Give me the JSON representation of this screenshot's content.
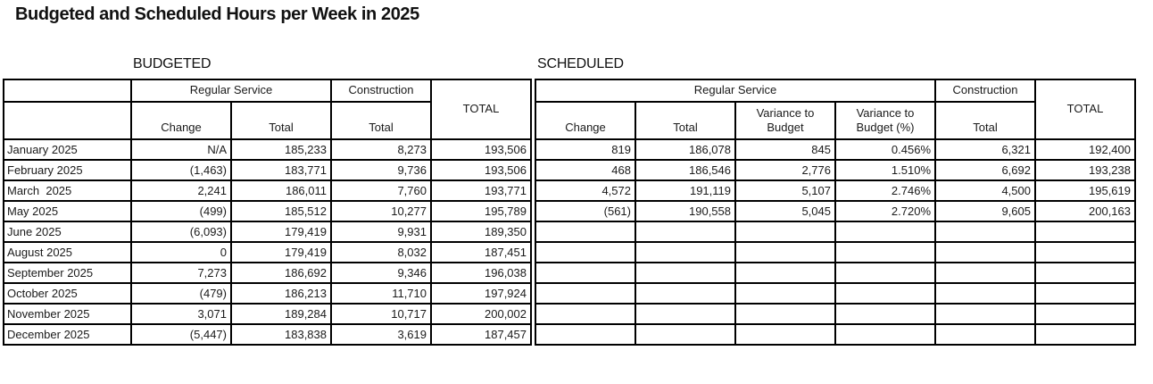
{
  "title": "Budgeted and Scheduled Hours per Week in 2025",
  "sections": {
    "budgeted": "BUDGETED",
    "scheduled": "SCHEDULED"
  },
  "headers": {
    "regular_service": "Regular Service",
    "construction": "Construction",
    "change": "Change",
    "total": "Total",
    "variance_to_budget": "Variance to Budget",
    "variance_to_budget_pct": "Variance to Budget (%)",
    "grand_total": "TOTAL"
  },
  "colors": {
    "value_blue": "#2d2dc8",
    "border_black": "#000000"
  },
  "rows": [
    {
      "month": "January 2025",
      "b_change": "N/A",
      "b_total": "185,233",
      "b_constr": "8,273",
      "b_grand": "193,506",
      "s_change": "819",
      "s_total": "186,078",
      "s_var": "845",
      "s_var_pct": "0.456%",
      "s_constr": "6,321",
      "s_grand": "192,400"
    },
    {
      "month": "February 2025",
      "b_change": "(1,463)",
      "b_total": "183,771",
      "b_constr": "9,736",
      "b_grand": "193,506",
      "s_change": "468",
      "s_total": "186,546",
      "s_var": "2,776",
      "s_var_pct": "1.510%",
      "s_constr": "6,692",
      "s_grand": "193,238"
    },
    {
      "month": "March  2025",
      "b_change": "2,241",
      "b_total": "186,011",
      "b_constr": "7,760",
      "b_grand": "193,771",
      "s_change": "4,572",
      "s_total": "191,119",
      "s_var": "5,107",
      "s_var_pct": "2.746%",
      "s_constr": "4,500",
      "s_grand": "195,619"
    },
    {
      "month": "May 2025",
      "b_change": "(499)",
      "b_total": "185,512",
      "b_constr": "10,277",
      "b_grand": "195,789",
      "s_change": "(561)",
      "s_total": "190,558",
      "s_var": "5,045",
      "s_var_pct": "2.720%",
      "s_constr": "9,605",
      "s_grand": "200,163"
    },
    {
      "month": "June 2025",
      "b_change": "(6,093)",
      "b_total": "179,419",
      "b_constr": "9,931",
      "b_grand": "189,350",
      "s_change": "",
      "s_total": "",
      "s_var": "",
      "s_var_pct": "",
      "s_constr": "",
      "s_grand": ""
    },
    {
      "month": "August 2025",
      "b_change": "0",
      "b_total": "179,419",
      "b_constr": "8,032",
      "b_grand": "187,451",
      "s_change": "",
      "s_total": "",
      "s_var": "",
      "s_var_pct": "",
      "s_constr": "",
      "s_grand": ""
    },
    {
      "month": "September 2025",
      "b_change": "7,273",
      "b_total": "186,692",
      "b_constr": "9,346",
      "b_grand": "196,038",
      "s_change": "",
      "s_total": "",
      "s_var": "",
      "s_var_pct": "",
      "s_constr": "",
      "s_grand": ""
    },
    {
      "month": "October 2025",
      "b_change": "(479)",
      "b_total": "186,213",
      "b_constr": "11,710",
      "b_grand": "197,924",
      "s_change": "",
      "s_total": "",
      "s_var": "",
      "s_var_pct": "",
      "s_constr": "",
      "s_grand": ""
    },
    {
      "month": "November 2025",
      "b_change": "3,071",
      "b_total": "189,284",
      "b_constr": "10,717",
      "b_grand": "200,002",
      "s_change": "",
      "s_total": "",
      "s_var": "",
      "s_var_pct": "",
      "s_constr": "",
      "s_grand": ""
    },
    {
      "month": "December 2025",
      "b_change": "(5,447)",
      "b_total": "183,838",
      "b_constr": "3,619",
      "b_grand": "187,457",
      "s_change": "",
      "s_total": "",
      "s_var": "",
      "s_var_pct": "",
      "s_constr": "",
      "s_grand": ""
    }
  ]
}
